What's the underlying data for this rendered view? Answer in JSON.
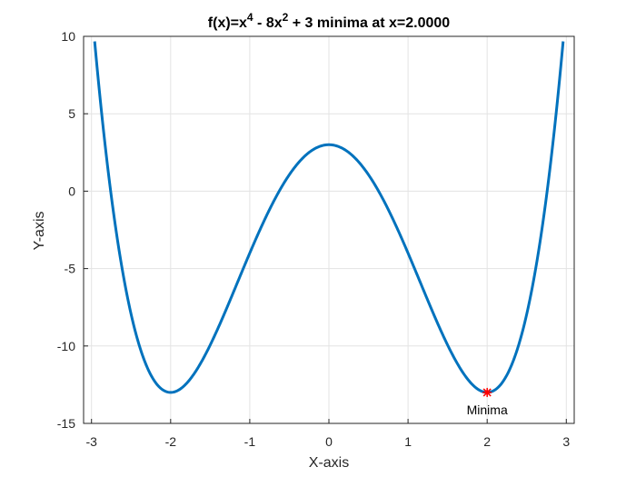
{
  "chart_data": {
    "type": "line",
    "title": {
      "prefix": "f(x)=x",
      "exp1": "4",
      "mid": " - 8x",
      "exp2": "2",
      "suffix": " + 3 minima at x=2.0000"
    },
    "xlabel": "X-axis",
    "ylabel": "Y-axis",
    "xlim": [
      -3.1,
      3.1
    ],
    "ylim": [
      -15,
      10
    ],
    "xticks": [
      -3,
      -2,
      -1,
      0,
      1,
      2,
      3
    ],
    "yticks": [
      -15,
      -10,
      -5,
      0,
      5,
      10
    ],
    "grid": true,
    "series": [
      {
        "function": "x^4 - 8x^2 + 3",
        "x_range": [
          -3,
          3
        ],
        "color": "#0072BD"
      }
    ],
    "marker": {
      "x": 2,
      "y": -13,
      "color": "#FF0000",
      "label": "Minima"
    }
  }
}
